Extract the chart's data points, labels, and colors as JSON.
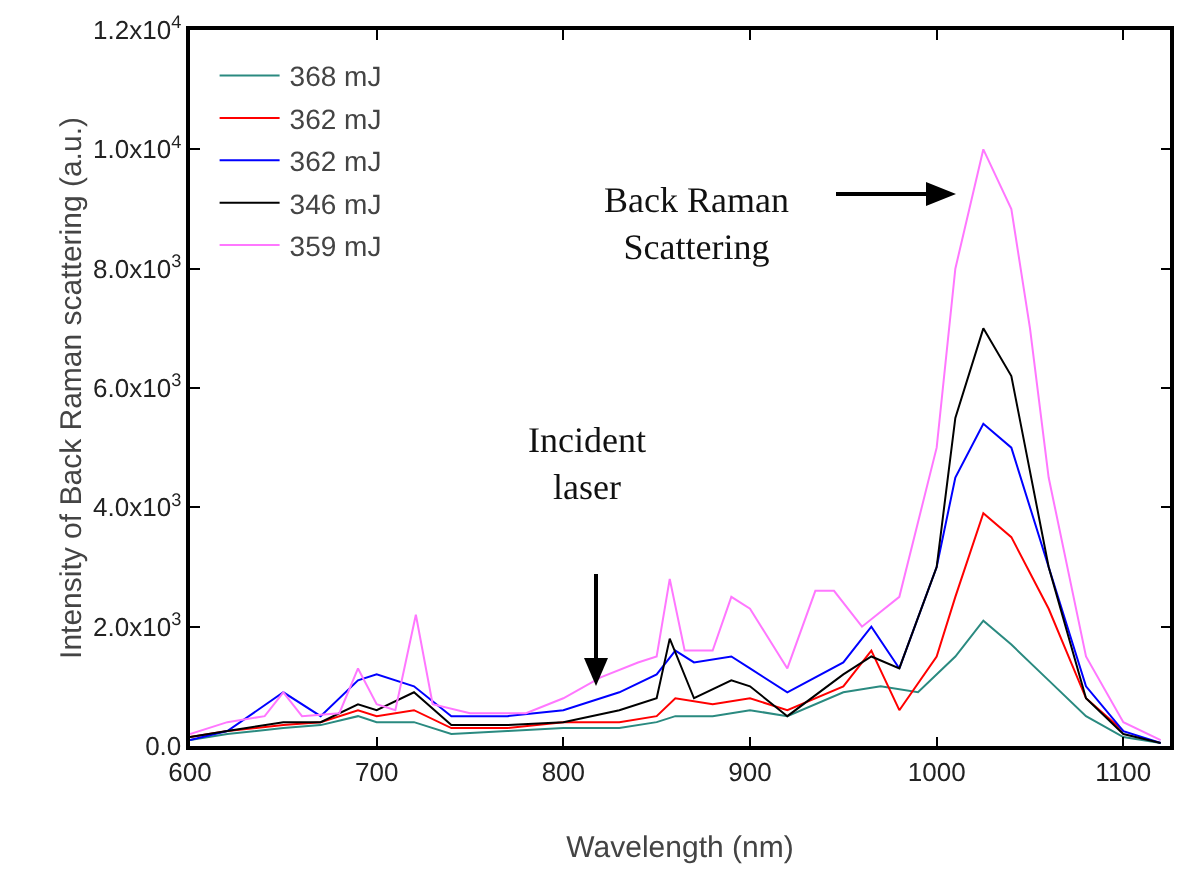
{
  "chart_data": {
    "type": "line",
    "xlabel": "Wavelength (nm)",
    "ylabel": "Intensity of Back Raman scattering (a.u.)",
    "xlim": [
      600,
      1125
    ],
    "xticks": [
      600,
      700,
      800,
      900,
      1000,
      1100
    ],
    "ylim": [
      0,
      12000
    ],
    "yticks": [
      {
        "value": 0,
        "label": "0.0"
      },
      {
        "value": 2000,
        "label": "2.0x10$^{3}$"
      },
      {
        "value": 4000,
        "label": "4.0x10$^{3}$"
      },
      {
        "value": 6000,
        "label": "6.0x10$^{3}$"
      },
      {
        "value": 8000,
        "label": "8.0x10$^{3}$"
      },
      {
        "value": 10000,
        "label": "1.0x10$^{4}$"
      },
      {
        "value": 12000,
        "label": "1.2x10$^{4}$"
      }
    ],
    "grid": false,
    "legend": "top left",
    "marker": "none",
    "line_style": "solid",
    "series": [
      {
        "name": "368 mJ",
        "color": "#2a8a80",
        "x": [
          600,
          620,
          650,
          670,
          690,
          700,
          720,
          740,
          770,
          800,
          830,
          850,
          860,
          880,
          900,
          920,
          950,
          970,
          990,
          1010,
          1025,
          1040,
          1060,
          1080,
          1100,
          1120
        ],
        "values": [
          100,
          200,
          300,
          350,
          500,
          400,
          400,
          200,
          250,
          300,
          300,
          400,
          500,
          500,
          600,
          500,
          900,
          1000,
          900,
          1500,
          2100,
          1700,
          1100,
          500,
          150,
          50
        ]
      },
      {
        "name": "362 mJ",
        "color": "#ff0000",
        "x": [
          600,
          620,
          650,
          670,
          690,
          700,
          720,
          740,
          770,
          800,
          830,
          850,
          860,
          880,
          900,
          920,
          950,
          965,
          980,
          1000,
          1010,
          1025,
          1040,
          1060,
          1080,
          1100
        ],
        "values": [
          150,
          250,
          350,
          400,
          600,
          500,
          600,
          300,
          300,
          400,
          400,
          500,
          800,
          700,
          800,
          600,
          1000,
          1600,
          600,
          1500,
          2500,
          3900,
          3500,
          2300,
          800,
          250
        ]
      },
      {
        "name": "362 mJ",
        "color": "#0000ff",
        "x": [
          600,
          620,
          650,
          670,
          690,
          700,
          720,
          740,
          770,
          800,
          830,
          850,
          860,
          870,
          890,
          900,
          920,
          950,
          965,
          980,
          1000,
          1010,
          1025,
          1040,
          1060,
          1080,
          1100,
          1120
        ],
        "values": [
          100,
          250,
          900,
          500,
          1100,
          1200,
          1000,
          500,
          500,
          600,
          900,
          1200,
          1600,
          1400,
          1500,
          1300,
          900,
          1400,
          2000,
          1300,
          3000,
          4500,
          5400,
          5000,
          3000,
          1000,
          250,
          50
        ]
      },
      {
        "name": "346 mJ",
        "color": "#000000",
        "x": [
          600,
          620,
          650,
          670,
          690,
          700,
          720,
          740,
          770,
          800,
          830,
          850,
          857,
          870,
          890,
          900,
          920,
          950,
          965,
          980,
          1000,
          1010,
          1025,
          1040,
          1060,
          1080,
          1100,
          1120
        ],
        "values": [
          150,
          250,
          400,
          400,
          700,
          600,
          900,
          350,
          350,
          400,
          600,
          800,
          1800,
          800,
          1100,
          1000,
          500,
          1200,
          1500,
          1300,
          3000,
          5500,
          7000,
          6200,
          3000,
          800,
          200,
          50
        ]
      },
      {
        "name": "359 mJ",
        "color": "#ff77ff",
        "x": [
          600,
          620,
          640,
          650,
          660,
          680,
          690,
          700,
          710,
          721,
          730,
          750,
          780,
          800,
          820,
          840,
          850,
          857,
          865,
          880,
          890,
          900,
          920,
          935,
          945,
          960,
          980,
          1000,
          1010,
          1025,
          1040,
          1050,
          1060,
          1080,
          1100,
          1120
        ],
        "values": [
          200,
          400,
          500,
          900,
          500,
          550,
          1300,
          700,
          600,
          2200,
          700,
          550,
          550,
          800,
          1150,
          1400,
          1500,
          2800,
          1600,
          1600,
          2500,
          2300,
          1300,
          2600,
          2600,
          2000,
          2500,
          5000,
          8000,
          10000,
          9000,
          7000,
          4500,
          1500,
          400,
          100
        ]
      }
    ],
    "annotations": [
      "Back Raman\nScattering",
      "Incident\nlaser"
    ]
  }
}
